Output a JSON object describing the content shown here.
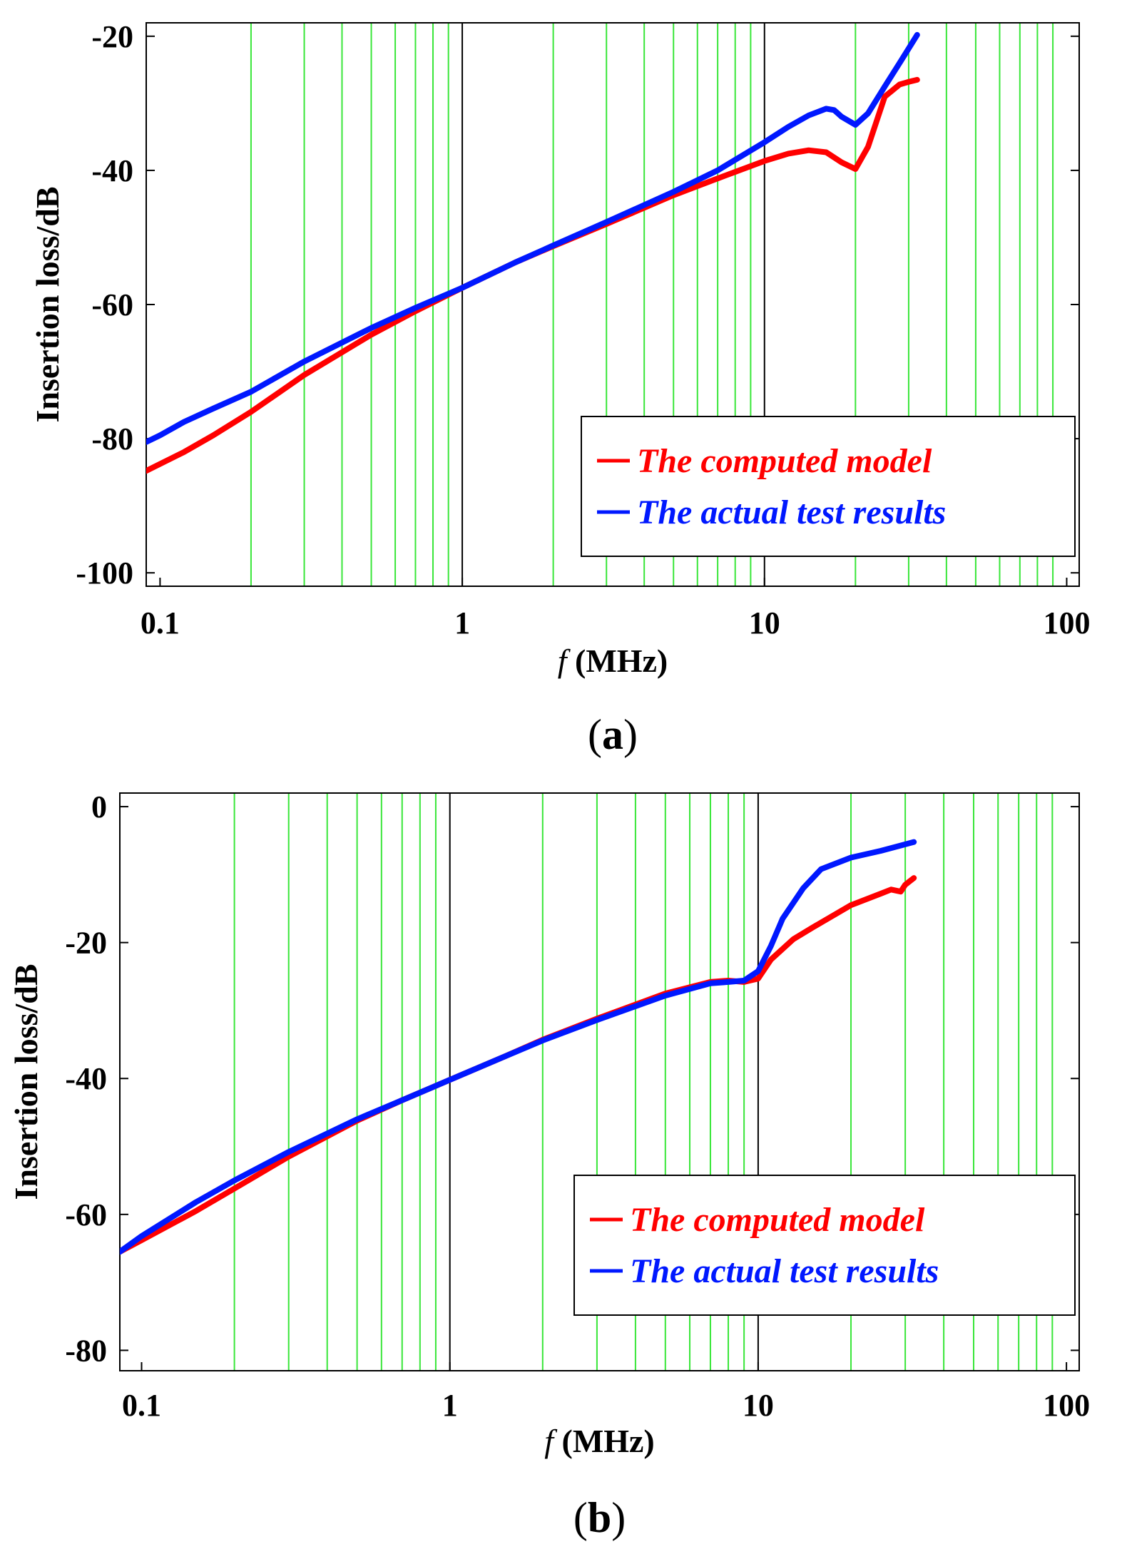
{
  "chart_data": [
    {
      "type": "line",
      "panel": "a",
      "panel_label_open": "(",
      "panel_label_letter": "a",
      "panel_label_close": ")",
      "xscale": "log",
      "xlim": [
        0.09,
        110
      ],
      "ylim": [
        -102,
        -18
      ],
      "xticks": [
        0.1,
        1,
        10,
        100
      ],
      "xticklabels": [
        "0.1",
        "1",
        "10",
        "100"
      ],
      "yticks": [
        -20,
        -40,
        -60,
        -80,
        -100
      ],
      "yticklabels": [
        "-20",
        "-40",
        "-60",
        "-80",
        "-100"
      ],
      "xlabel_italic": "f",
      "xlabel_rest": " (MHz)",
      "ylabel": "Insertion loss/dB",
      "grid_color": "#39e639",
      "decade_line_color": "#000000",
      "legend": [
        "The computed model",
        "The actual test results"
      ],
      "legend_position": "bottom-right",
      "series": [
        {
          "name": "The computed model",
          "color": "#ff0000",
          "x": [
            0.09,
            0.12,
            0.15,
            0.2,
            0.3,
            0.5,
            0.7,
            1,
            1.5,
            2,
            3,
            5,
            7,
            10,
            12,
            14,
            16,
            18,
            20,
            22,
            25,
            28,
            30,
            32
          ],
          "y": [
            -84.8,
            -82,
            -79.5,
            -76,
            -70.5,
            -64.5,
            -61,
            -57.5,
            -53.7,
            -51.3,
            -48,
            -43.7,
            -41.2,
            -38.6,
            -37.5,
            -37.0,
            -37.3,
            -38.8,
            -39.8,
            -36.5,
            -29,
            -27.2,
            -26.8,
            -26.5
          ]
        },
        {
          "name": "The actual test results",
          "color": "#0018ff",
          "x": [
            0.09,
            0.1,
            0.12,
            0.15,
            0.2,
            0.3,
            0.5,
            0.7,
            1,
            1.5,
            2,
            3,
            5,
            7,
            10,
            12,
            14,
            16,
            17,
            18,
            20,
            22,
            25,
            28,
            32
          ],
          "y": [
            -80.5,
            -79.5,
            -77.5,
            -75.5,
            -73,
            -68.5,
            -63.5,
            -60.5,
            -57.5,
            -53.7,
            -51.2,
            -47.7,
            -43.2,
            -40,
            -35.8,
            -33.5,
            -31.8,
            -30.8,
            -31,
            -32,
            -33.2,
            -31.5,
            -27.5,
            -24,
            -19.8
          ]
        }
      ]
    },
    {
      "type": "line",
      "panel": "b",
      "panel_label_open": "(",
      "panel_label_letter": "b",
      "panel_label_close": ")",
      "xscale": "log",
      "xlim": [
        0.085,
        110
      ],
      "ylim": [
        -83,
        2
      ],
      "xticks": [
        0.1,
        1,
        10,
        100
      ],
      "xticklabels": [
        "0.1",
        "1",
        "10",
        "100"
      ],
      "yticks": [
        0,
        -20,
        -40,
        -60,
        -80
      ],
      "yticklabels": [
        "0",
        "-20",
        "-40",
        "-60",
        "-80"
      ],
      "xlabel_italic": "f",
      "xlabel_rest": " (MHz)",
      "ylabel": "Insertion loss/dB",
      "grid_color": "#39e639",
      "decade_line_color": "#000000",
      "legend": [
        "The computed model",
        "The actual test results"
      ],
      "legend_position": "bottom-right",
      "series": [
        {
          "name": "The computed model",
          "color": "#ff0000",
          "x": [
            0.085,
            0.1,
            0.15,
            0.2,
            0.3,
            0.5,
            0.7,
            1,
            1.5,
            2,
            3,
            5,
            7,
            8,
            9,
            10,
            11,
            13,
            15,
            20,
            25,
            27,
            29,
            30,
            32
          ],
          "y": [
            -65.5,
            -63.8,
            -59.5,
            -56.2,
            -51.5,
            -46.2,
            -43.2,
            -40.2,
            -36.8,
            -34.3,
            -31.2,
            -27.5,
            -25.8,
            -25.6,
            -25.8,
            -25.3,
            -22.5,
            -19.5,
            -17.8,
            -14.5,
            -12.8,
            -12.2,
            -12.5,
            -11.5,
            -10.5
          ]
        },
        {
          "name": "The actual test results",
          "color": "#0018ff",
          "x": [
            0.085,
            0.1,
            0.15,
            0.2,
            0.3,
            0.5,
            0.7,
            1,
            1.5,
            2,
            3,
            5,
            7,
            8,
            9,
            10,
            11,
            12,
            14,
            16,
            20,
            25,
            32
          ],
          "y": [
            -65.5,
            -63.2,
            -58.2,
            -55,
            -50.8,
            -46,
            -43.2,
            -40.2,
            -36.8,
            -34.4,
            -31.4,
            -27.8,
            -26,
            -25.8,
            -25.6,
            -24.2,
            -20.5,
            -16.5,
            -12,
            -9.2,
            -7.5,
            -6.5,
            -5.2
          ]
        }
      ]
    }
  ]
}
